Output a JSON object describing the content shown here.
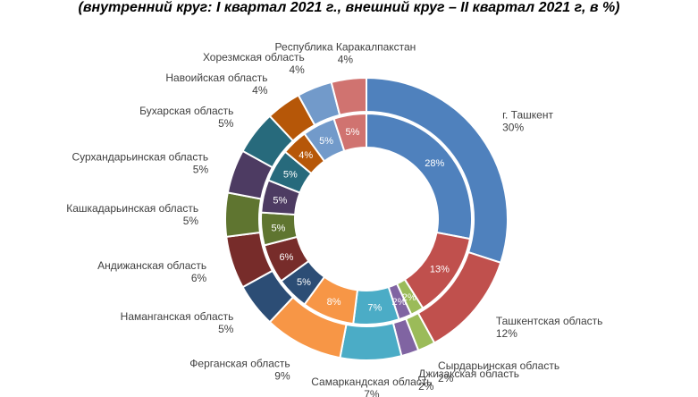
{
  "subtitle": "(внутренний круг: I квартал 2021 г., внешний круг –  II квартал 2021 г, в %)",
  "chart_data": {
    "type": "pie",
    "variant": "double-donut",
    "inner_ring": "I квартал 2021 г.",
    "outer_ring": "II квартал 2021 г",
    "unit": "%",
    "categories": [
      {
        "name": "г. Ташкент",
        "inner": 28,
        "outer": 30,
        "color": "#4F81BD"
      },
      {
        "name": "Ташкентская область",
        "inner": 13,
        "outer": 12,
        "color": "#C0504D"
      },
      {
        "name": "Сырдарьинская область",
        "inner": 2,
        "outer": 2,
        "color": "#9BBB59"
      },
      {
        "name": "Джизакская область",
        "inner": 2,
        "outer": 2,
        "color": "#8064A2"
      },
      {
        "name": "Самаркандская область",
        "inner": 7,
        "outer": 7,
        "color": "#4BACC6"
      },
      {
        "name": "Ферганская область",
        "inner": 8,
        "outer": 9,
        "color": "#F79646"
      },
      {
        "name": "Наманганская область",
        "inner": 5,
        "outer": 5,
        "color": "#2C4D75"
      },
      {
        "name": "Андижанская область",
        "inner": 6,
        "outer": 6,
        "color": "#772C2A"
      },
      {
        "name": "Кашкадарьинская область",
        "inner": 5,
        "outer": 5,
        "color": "#5F7530"
      },
      {
        "name": "Сурхандарьинская область",
        "inner": 5,
        "outer": 5,
        "color": "#4D3B62"
      },
      {
        "name": "Бухарская область",
        "inner": 5,
        "outer": 5,
        "color": "#276A7C"
      },
      {
        "name": "Навоийская область",
        "inner": 4,
        "outer": 4,
        "color": "#B65708"
      },
      {
        "name": "Хорезмская область",
        "inner": 5,
        "outer": 4,
        "color": "#729ACA"
      },
      {
        "name": "Республика Каракалпакстан",
        "inner": 5,
        "outer": 4,
        "color": "#D07370"
      }
    ]
  }
}
